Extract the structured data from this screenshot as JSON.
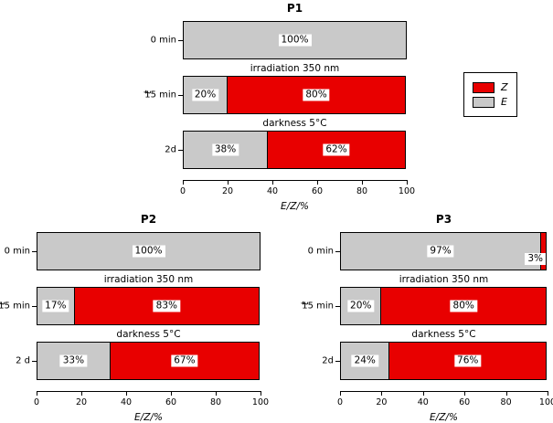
{
  "figure": {
    "background": "#ffffff"
  },
  "legend": {
    "items": [
      {
        "label": "Z",
        "color": "#e80000"
      },
      {
        "label": "E",
        "color": "#c9c9c9"
      }
    ]
  },
  "chart_data": [
    {
      "type": "bar",
      "orientation": "horizontal",
      "title": "P1",
      "xlabel": "E/Z/%",
      "ylabel": "t",
      "xlim": [
        0,
        100
      ],
      "xticks": [
        0,
        20,
        40,
        60,
        80,
        100
      ],
      "grid": false,
      "categories": [
        "0 min",
        "15 min",
        "2d"
      ],
      "row_annotations": [
        "",
        "irradiation 350 nm",
        "darkness 5°C"
      ],
      "series": [
        {
          "name": "E",
          "color": "#c9c9c9",
          "values": [
            100,
            20,
            38
          ],
          "labels": [
            "100%",
            "20%",
            "38%"
          ]
        },
        {
          "name": "Z",
          "color": "#e80000",
          "values": [
            0,
            80,
            62
          ],
          "labels": [
            "",
            "80%",
            "62%"
          ]
        }
      ]
    },
    {
      "type": "bar",
      "orientation": "horizontal",
      "title": "P2",
      "xlabel": "E/Z/%",
      "ylabel": "t",
      "xlim": [
        0,
        100
      ],
      "xticks": [
        0,
        20,
        40,
        60,
        80,
        100
      ],
      "grid": false,
      "categories": [
        "0 min",
        "15 min",
        "2 d"
      ],
      "row_annotations": [
        "",
        "irradiation 350 nm",
        "darkness 5°C"
      ],
      "series": [
        {
          "name": "E",
          "color": "#c9c9c9",
          "values": [
            100,
            17,
            33
          ],
          "labels": [
            "100%",
            "17%",
            "33%"
          ]
        },
        {
          "name": "Z",
          "color": "#e80000",
          "values": [
            0,
            83,
            67
          ],
          "labels": [
            "",
            "83%",
            "67%"
          ]
        }
      ]
    },
    {
      "type": "bar",
      "orientation": "horizontal",
      "title": "P3",
      "xlabel": "E/Z/%",
      "ylabel": "t",
      "xlim": [
        0,
        100
      ],
      "xticks": [
        0,
        20,
        40,
        60,
        80,
        100
      ],
      "grid": false,
      "categories": [
        "0 min",
        "15 min",
        "2d"
      ],
      "row_annotations": [
        "",
        "irradiation 350 nm",
        "darkness 5°C"
      ],
      "series": [
        {
          "name": "E",
          "color": "#c9c9c9",
          "values": [
            97,
            20,
            24
          ],
          "labels": [
            "97%",
            "20%",
            "24%"
          ]
        },
        {
          "name": "Z",
          "color": "#e80000",
          "values": [
            3,
            80,
            76
          ],
          "labels": [
            "3%",
            "80%",
            "76%"
          ]
        }
      ]
    }
  ]
}
